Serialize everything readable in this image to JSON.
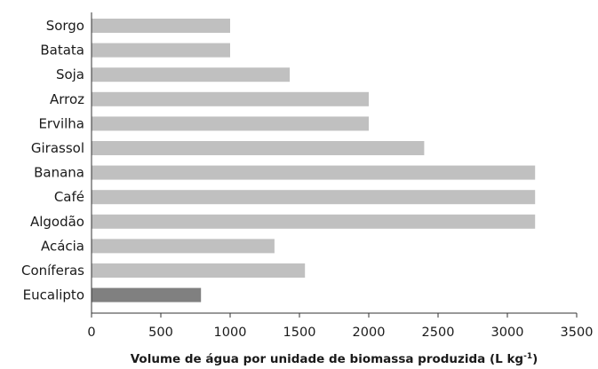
{
  "chart_data": {
    "type": "bar",
    "orientation": "horizontal",
    "categories": [
      "Sorgo",
      "Batata",
      "Soja",
      "Arroz",
      "Ervilha",
      "Girassol",
      "Banana",
      "Café",
      "Algodão",
      "Acácia",
      "Coníferas",
      "Eucalipto"
    ],
    "values": [
      1000,
      1000,
      1430,
      2000,
      2000,
      2400,
      3200,
      3200,
      3200,
      1320,
      1540,
      790
    ],
    "xlabel": "Volume de água por unidade de biomassa produzida (L kg",
    "xlabel_superscript": "-1",
    "xlabel_suffix": ")",
    "xlim": [
      0,
      3500
    ],
    "xticks": [
      0,
      500,
      1000,
      1500,
      2000,
      2500,
      3000,
      3500
    ],
    "grid": false,
    "colors": {
      "default_bar": "#c0c0c0",
      "highlight_bar": "#808080"
    },
    "highlight_category": "Eucalipto"
  }
}
